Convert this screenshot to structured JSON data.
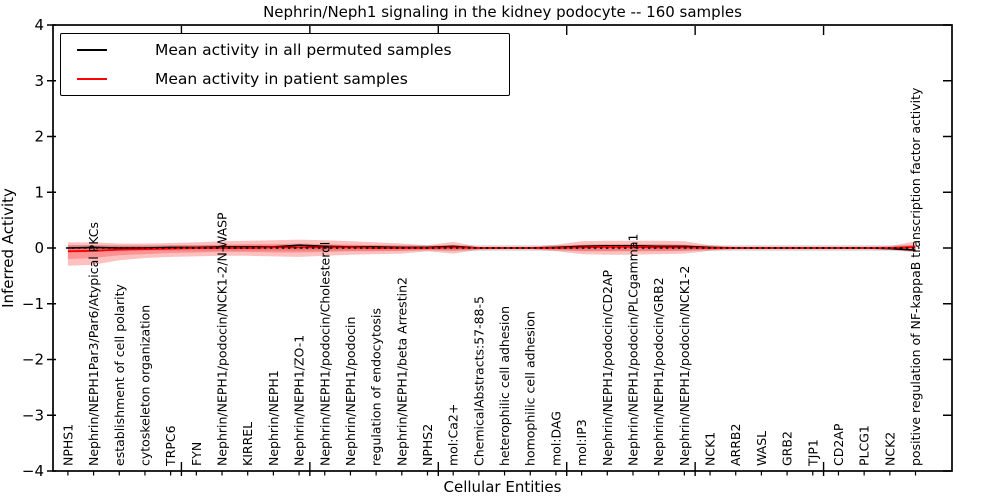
{
  "chart_data": {
    "type": "line",
    "title": "Nephrin/Neph1 signaling in the kidney podocyte -- 160 samples",
    "xlabel": "Cellular Entities",
    "ylabel": "Inferred Activity",
    "ylim": [
      -4,
      4
    ],
    "xlim_units": 35,
    "first_entity_unit": 0.58,
    "major_xtick_units": [
      5,
      10,
      15,
      20,
      25,
      30
    ],
    "ytick_values": [
      4,
      3,
      2,
      1,
      0,
      -1,
      -2,
      -3,
      -4
    ],
    "ytick_labels": [
      "4",
      "3",
      "2",
      "1",
      "0",
      "−1",
      "−2",
      "−3",
      "−4"
    ],
    "grid": false,
    "legend_position": "upper left",
    "categories": [
      "NPHS1",
      "Nephrin/NEPH1Par3/Par6/Atypical PKCs",
      "establishment of cell polarity",
      "cytoskeleton organization",
      "TRPC6",
      "FYN",
      "Nephrin/NEPH1/podocin/NCK1-2/N-WASP",
      "KIRREL",
      "Nephrin/NEPH1",
      "Nephrin/NEPH1/ZO-1",
      "Nephrin/NEPH1/podocin/Cholesterol",
      "Nephrin/NEPH1/podocin",
      "regulation of endocytosis",
      "Nephrin/NEPH1/beta Arrestin2",
      "NPHS2",
      "mol:Ca2+",
      "ChemicalAbstracts:57-88-5",
      "heterophilic cell adhesion",
      "homophilic cell adhesion",
      "mol:DAG",
      "mol:IP3",
      "Nephrin/NEPH1/podocin/CD2AP",
      "Nephrin/NEPH1/podocin/PLCgamma1",
      "Nephrin/NEPH1/podocin/GRB2",
      "Nephrin/NEPH1/podocin/NCK1-2",
      "NCK1",
      "ARRB2",
      "WASL",
      "GRB2",
      "TJP1",
      "CD2AP",
      "PLCG1",
      "NCK2",
      "positive regulation of NF-kappaB transcription factor activity"
    ],
    "series": [
      {
        "name": "Mean activity in all permuted samples",
        "color": "#000000",
        "values": [
          0.0,
          0.01,
          0.0,
          0.0,
          0.01,
          0.01,
          0.02,
          0.02,
          0.02,
          0.05,
          0.03,
          0.02,
          0.02,
          0.01,
          0.01,
          0.03,
          0.0,
          0.0,
          0.0,
          0.01,
          0.03,
          0.04,
          0.04,
          0.03,
          0.03,
          0.01,
          0.0,
          0.0,
          0.0,
          0.0,
          0.0,
          0.0,
          -0.01,
          -0.04
        ]
      },
      {
        "name": "Mean activity in patient samples",
        "color": "#ff0000",
        "values": [
          -0.06,
          -0.05,
          -0.03,
          -0.02,
          -0.01,
          0.0,
          0.0,
          0.0,
          0.01,
          0.01,
          0.01,
          0.01,
          0.0,
          0.0,
          0.0,
          0.01,
          0.0,
          0.0,
          0.0,
          0.0,
          0.01,
          0.02,
          0.02,
          0.01,
          0.01,
          0.0,
          0.0,
          0.0,
          0.0,
          0.0,
          0.0,
          0.0,
          0.0,
          0.02
        ]
      }
    ],
    "bands": {
      "patient_outer": {
        "fill": "rgba(255,30,30,0.28)",
        "upper": [
          0.1,
          0.1,
          0.08,
          0.08,
          0.09,
          0.1,
          0.12,
          0.13,
          0.14,
          0.15,
          0.14,
          0.12,
          0.1,
          0.08,
          0.05,
          0.11,
          0.02,
          0.02,
          0.02,
          0.06,
          0.12,
          0.13,
          0.13,
          0.13,
          0.12,
          0.05,
          0.02,
          0.02,
          0.02,
          0.02,
          0.02,
          0.02,
          0.03,
          0.12
        ],
        "lower": [
          -0.32,
          -0.3,
          -0.22,
          -0.18,
          -0.16,
          -0.15,
          -0.14,
          -0.14,
          -0.15,
          -0.16,
          -0.14,
          -0.12,
          -0.11,
          -0.1,
          -0.06,
          -0.1,
          -0.03,
          -0.02,
          -0.02,
          -0.06,
          -0.11,
          -0.12,
          -0.12,
          -0.11,
          -0.1,
          -0.05,
          -0.02,
          -0.02,
          -0.02,
          -0.02,
          -0.02,
          -0.02,
          -0.03,
          -0.08
        ]
      },
      "patient_inner": {
        "fill": "rgba(255,30,30,0.28)",
        "upper": [
          0.05,
          0.05,
          0.04,
          0.04,
          0.05,
          0.05,
          0.06,
          0.07,
          0.07,
          0.08,
          0.07,
          0.06,
          0.05,
          0.04,
          0.03,
          0.05,
          0.01,
          0.01,
          0.01,
          0.03,
          0.06,
          0.07,
          0.07,
          0.07,
          0.06,
          0.02,
          0.01,
          0.01,
          0.01,
          0.01,
          0.01,
          0.01,
          0.02,
          0.06
        ],
        "lower": [
          -0.2,
          -0.18,
          -0.13,
          -0.11,
          -0.09,
          -0.08,
          -0.07,
          -0.07,
          -0.08,
          -0.08,
          -0.07,
          -0.06,
          -0.06,
          -0.05,
          -0.03,
          -0.05,
          -0.02,
          -0.01,
          -0.01,
          -0.03,
          -0.06,
          -0.06,
          -0.06,
          -0.06,
          -0.05,
          -0.03,
          -0.01,
          -0.01,
          -0.01,
          -0.01,
          -0.01,
          -0.01,
          -0.02,
          -0.04
        ]
      },
      "permuted": {
        "fill": "rgba(120,120,120,0.28)",
        "upper_const": 0.05,
        "lower_const": -0.05
      }
    },
    "zero_reference_line": {
      "value": 0,
      "style": "dotted",
      "color": "#000000"
    }
  }
}
